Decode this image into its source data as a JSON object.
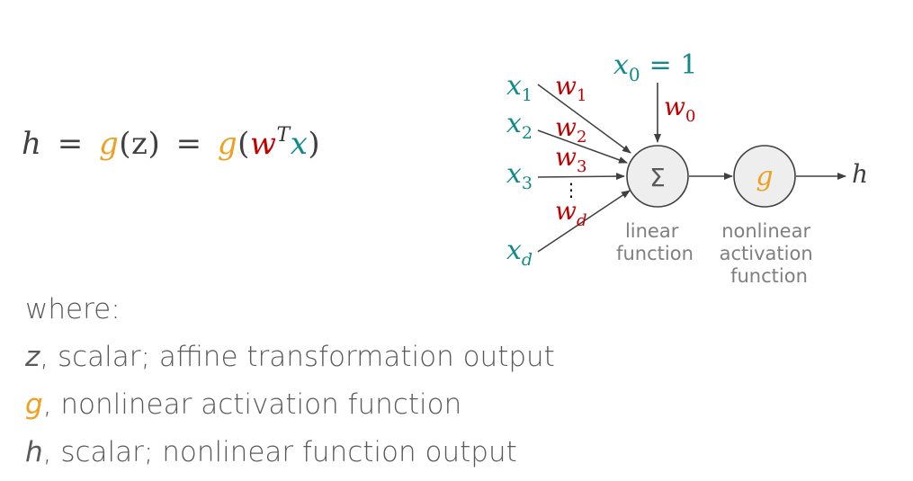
{
  "formula": {
    "h": "h",
    "eq1": "=",
    "g1": "g",
    "z": "(z)",
    "eq2": "=",
    "g2": "g",
    "open": "(",
    "w": "w",
    "T": "T",
    "x": "x",
    "close": ")"
  },
  "explanation": {
    "heading": "where:",
    "lines": [
      {
        "var": "z",
        "text": ", scalar; affine transformation output"
      },
      {
        "var": "g",
        "text": ", nonlinear activation function"
      },
      {
        "var": "h",
        "text": ", scalar; nonlinear function output"
      }
    ]
  },
  "diagram": {
    "bias_input": "x",
    "bias_input_sub": "0",
    "bias_eq": "= 1",
    "bias_weight": "w",
    "bias_weight_sub": "0",
    "inputs": [
      {
        "x": "x",
        "sub": "1",
        "w": "w",
        "wsub": "1"
      },
      {
        "x": "x",
        "sub": "2",
        "w": "w",
        "wsub": "2"
      },
      {
        "x": "x",
        "sub": "3",
        "w": "w",
        "wsub": "3"
      },
      {
        "x": "x",
        "sub": "d",
        "w": "w",
        "wsub": "d"
      }
    ],
    "ellipsis": "⋮",
    "sum_symbol": "Σ",
    "activation_symbol": "g",
    "output": "h",
    "linear_caption": [
      "linear",
      "function"
    ],
    "nonlinear_caption": [
      "nonlinear",
      "activation",
      "function"
    ]
  },
  "colors": {
    "x_color": "#138a8a",
    "w_color": "#c00000",
    "g_color": "#f0a020",
    "text_gray": "#595959"
  }
}
